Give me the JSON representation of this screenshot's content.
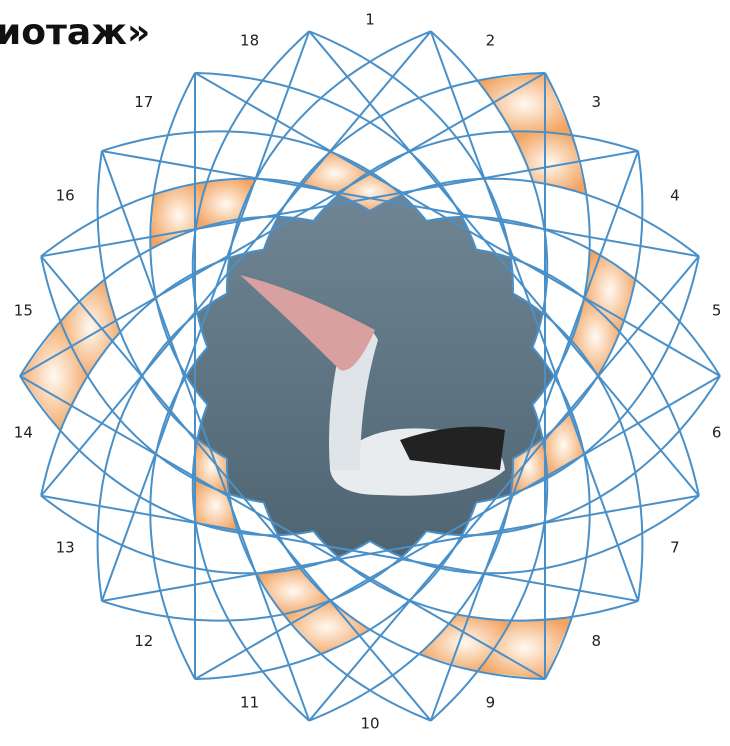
{
  "header": {
    "title": "иотаж»"
  },
  "puzzle": {
    "numbers": [
      "1",
      "2",
      "3",
      "4",
      "5",
      "6",
      "7",
      "8",
      "9",
      "10",
      "11",
      "12",
      "13",
      "14",
      "15",
      "16",
      "17",
      "18"
    ]
  }
}
